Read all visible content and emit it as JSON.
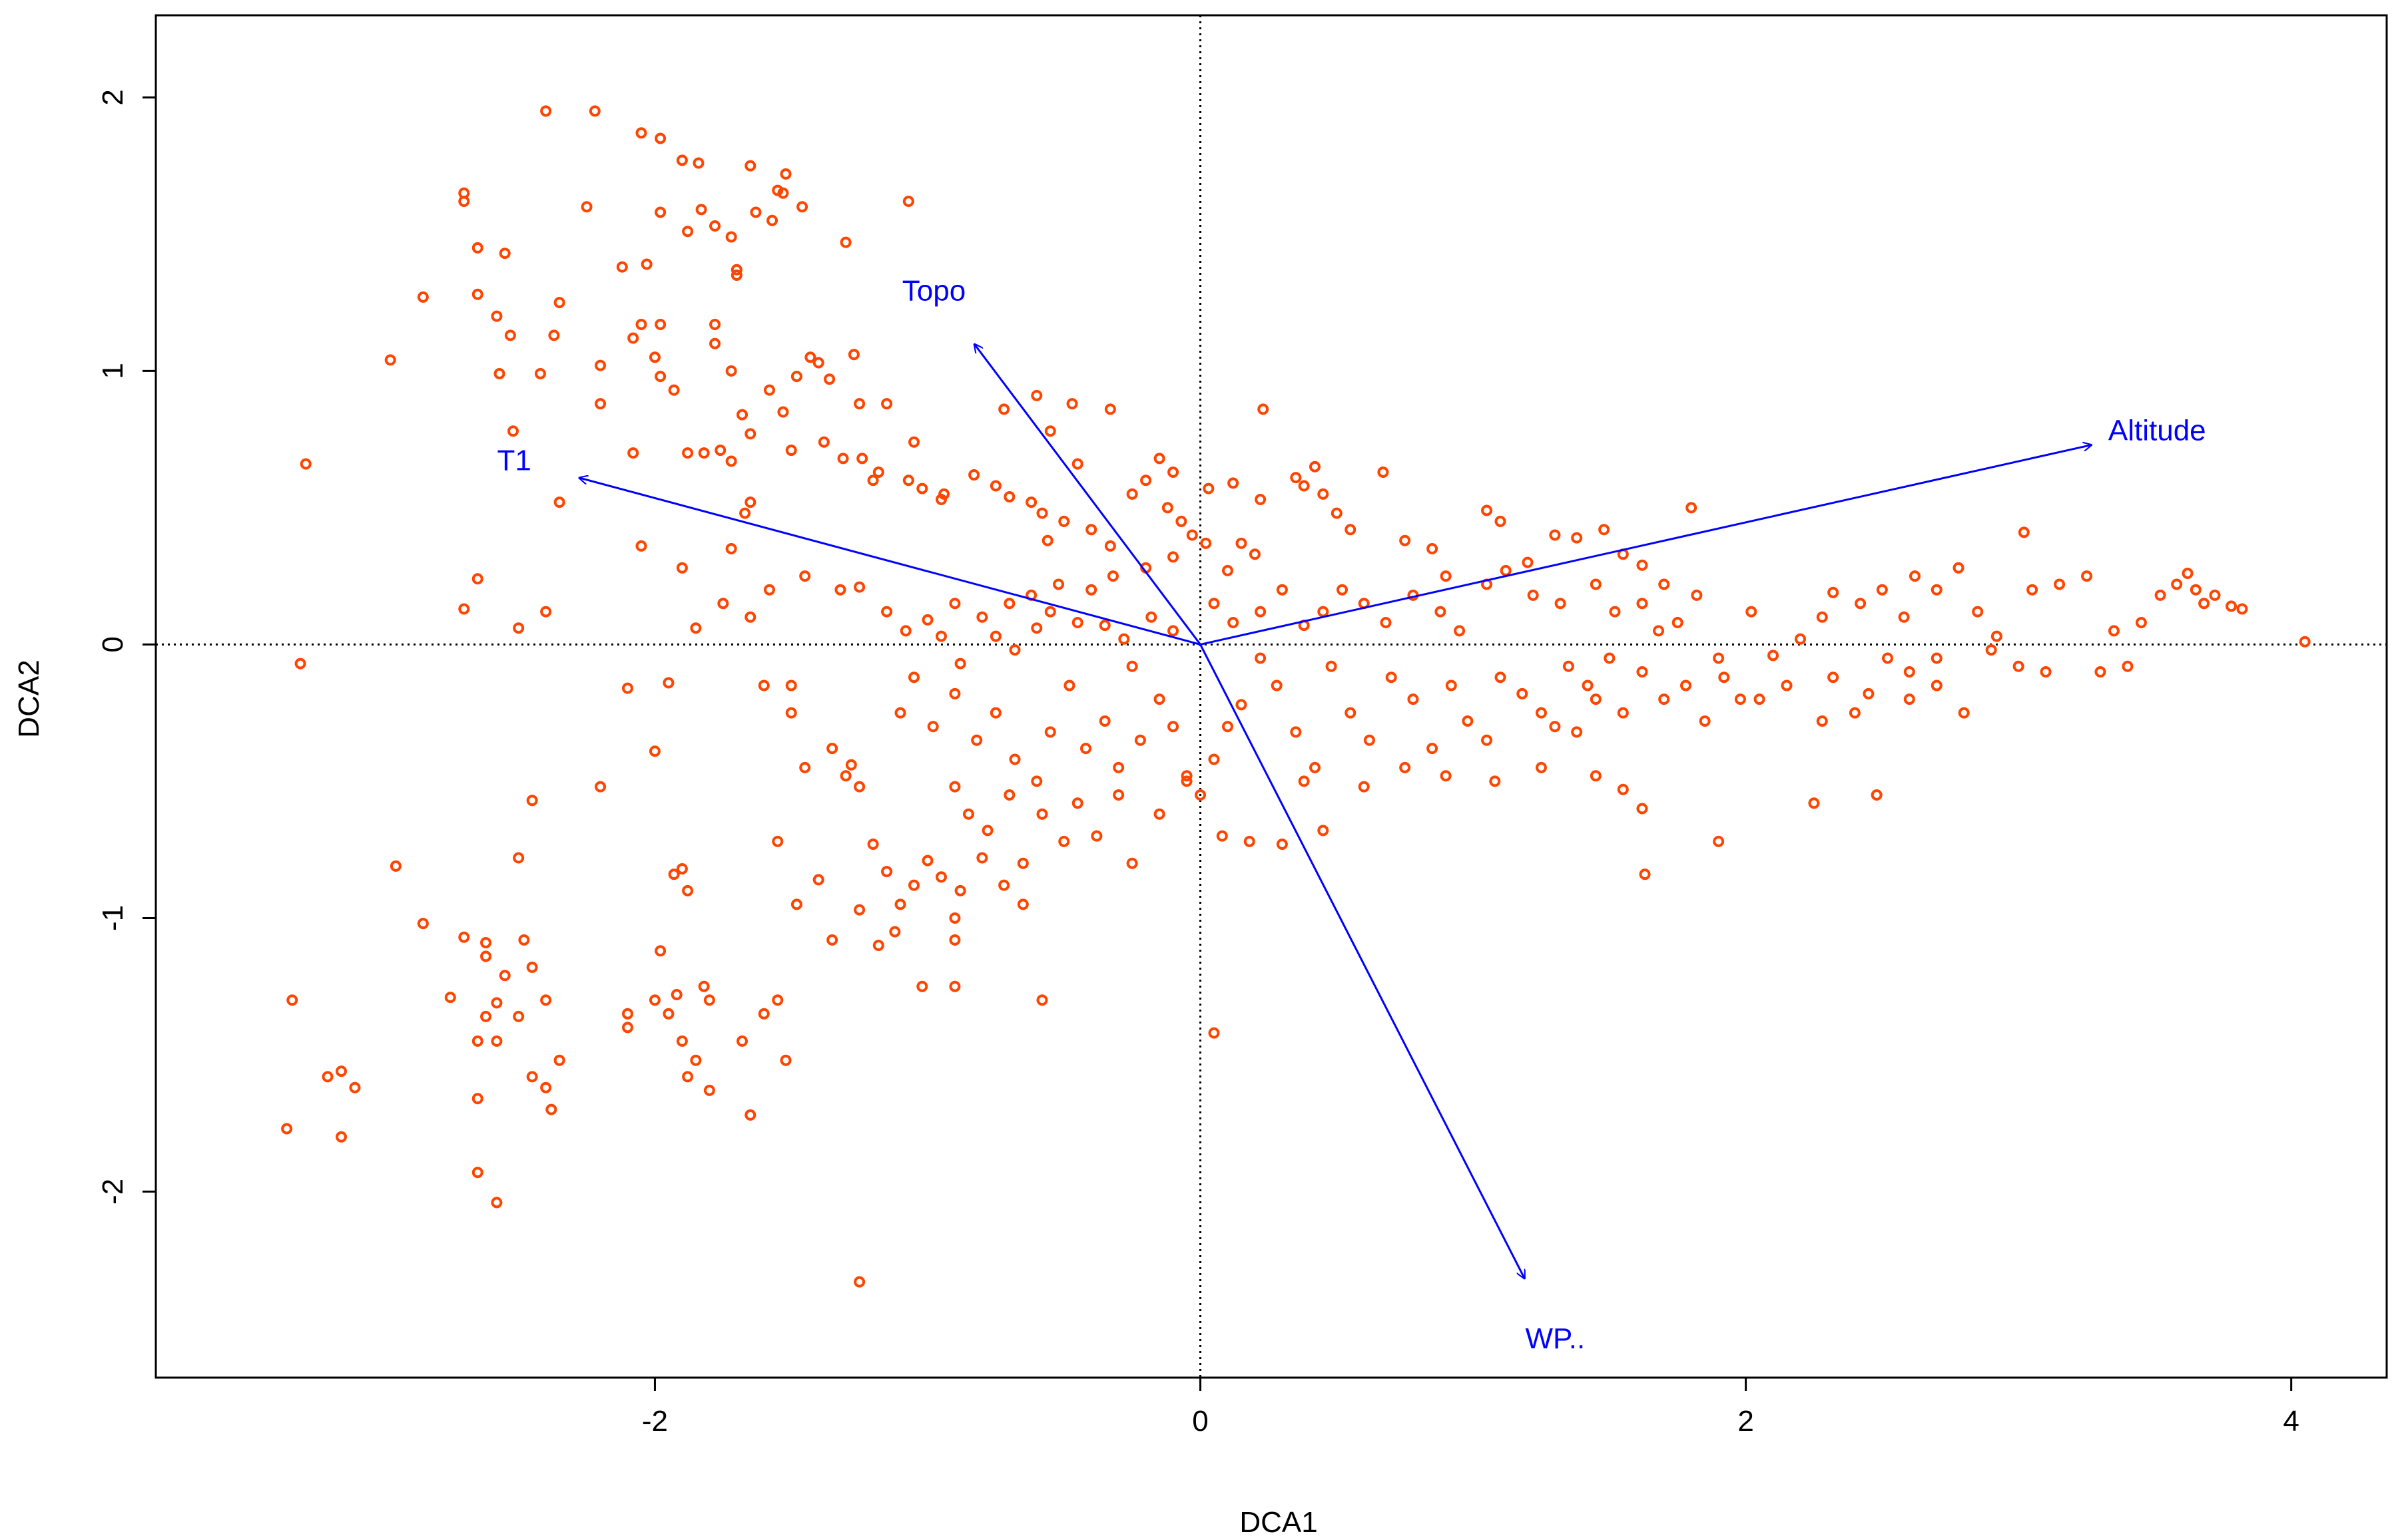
{
  "chart_data": {
    "type": "scatter",
    "title": "",
    "xlabel": "DCA1",
    "ylabel": "DCA2",
    "xlim": [
      -3.83,
      4.35
    ],
    "ylim": [
      -2.68,
      2.3
    ],
    "x_ticks": [
      -2,
      0,
      2,
      4
    ],
    "y_ticks": [
      -2,
      -1,
      0,
      1,
      2
    ],
    "x_tick_labels": [
      "-2",
      "0",
      "2",
      "4"
    ],
    "y_tick_labels": [
      "-2",
      "-1",
      "0",
      "1",
      "2"
    ],
    "grid": false,
    "reference_lines": {
      "x": 0,
      "y": 0,
      "style": "dotted"
    },
    "point_color": "#ff4500",
    "vector_color": "#0000ff",
    "vectors": [
      {
        "name": "Altitude",
        "x": 3.27,
        "y": 0.73
      },
      {
        "name": "Topo",
        "x": -0.83,
        "y": 1.1
      },
      {
        "name": "T1",
        "x": -2.28,
        "y": 0.61
      },
      {
        "name": "WP..",
        "x": 1.19,
        "y": -2.32
      }
    ],
    "points": [
      [
        -2.4,
        1.95
      ],
      [
        -2.22,
        1.95
      ],
      [
        -2.05,
        1.87
      ],
      [
        -1.98,
        1.85
      ],
      [
        -1.9,
        1.77
      ],
      [
        -1.84,
        1.76
      ],
      [
        -1.65,
        1.75
      ],
      [
        -1.52,
        1.72
      ],
      [
        -1.53,
        1.65
      ],
      [
        -1.55,
        1.66
      ],
      [
        -1.83,
        1.59
      ],
      [
        -1.63,
        1.58
      ],
      [
        -1.78,
        1.53
      ],
      [
        -1.72,
        1.49
      ],
      [
        -1.88,
        1.51
      ],
      [
        -1.7,
        1.37
      ],
      [
        -1.7,
        1.35
      ],
      [
        -1.98,
        1.58
      ],
      [
        -2.03,
        1.39
      ],
      [
        -2.12,
        1.38
      ],
      [
        -2.25,
        1.6
      ],
      [
        -2.7,
        1.65
      ],
      [
        -2.7,
        1.62
      ],
      [
        -2.65,
        1.45
      ],
      [
        -2.55,
        1.43
      ],
      [
        -2.05,
        1.17
      ],
      [
        -1.98,
        1.17
      ],
      [
        -1.78,
        1.17
      ],
      [
        -1.57,
        1.55
      ],
      [
        -1.46,
        1.6
      ],
      [
        -1.07,
        1.62
      ],
      [
        -1.3,
        1.47
      ],
      [
        -2.85,
        1.27
      ],
      [
        -2.65,
        1.28
      ],
      [
        -2.58,
        1.2
      ],
      [
        -2.35,
        1.25
      ],
      [
        -2.37,
        1.13
      ],
      [
        -2.53,
        1.13
      ],
      [
        -2.57,
        0.99
      ],
      [
        -2.42,
        0.99
      ],
      [
        -2.2,
        1.02
      ],
      [
        -2.08,
        1.12
      ],
      [
        -2.0,
        1.05
      ],
      [
        -1.98,
        0.98
      ],
      [
        -1.93,
        0.93
      ],
      [
        -1.78,
        1.1
      ],
      [
        -1.72,
        1.0
      ],
      [
        -1.68,
        0.84
      ],
      [
        -1.65,
        0.77
      ],
      [
        -1.58,
        0.93
      ],
      [
        -1.53,
        0.85
      ],
      [
        -1.48,
        0.98
      ],
      [
        -1.43,
        1.05
      ],
      [
        -1.4,
        1.03
      ],
      [
        -1.36,
        0.97
      ],
      [
        -1.27,
        1.06
      ],
      [
        -1.25,
        0.88
      ],
      [
        -1.15,
        0.88
      ],
      [
        -1.05,
        0.74
      ],
      [
        -2.97,
        1.04
      ],
      [
        -3.28,
        0.66
      ],
      [
        -2.52,
        0.78
      ],
      [
        -2.35,
        0.52
      ],
      [
        -2.2,
        0.88
      ],
      [
        -2.08,
        0.7
      ],
      [
        -1.88,
        0.7
      ],
      [
        -1.82,
        0.7
      ],
      [
        -1.76,
        0.71
      ],
      [
        -1.72,
        0.67
      ],
      [
        -1.67,
        0.48
      ],
      [
        -1.65,
        0.52
      ],
      [
        -1.5,
        0.71
      ],
      [
        -1.38,
        0.74
      ],
      [
        -1.31,
        0.68
      ],
      [
        -1.24,
        0.68
      ],
      [
        -1.18,
        0.63
      ],
      [
        -1.07,
        0.6
      ],
      [
        -1.2,
        0.6
      ],
      [
        -1.02,
        0.57
      ],
      [
        -0.95,
        0.53
      ],
      [
        -0.94,
        0.55
      ],
      [
        -0.83,
        0.62
      ],
      [
        -0.75,
        0.58
      ],
      [
        -0.7,
        0.54
      ],
      [
        -0.62,
        0.52
      ],
      [
        -0.58,
        0.48
      ],
      [
        -0.56,
        0.38
      ],
      [
        -0.5,
        0.45
      ],
      [
        -0.4,
        0.42
      ],
      [
        -0.33,
        0.36
      ],
      [
        -0.45,
        0.66
      ],
      [
        -0.55,
        0.78
      ],
      [
        -0.72,
        0.86
      ],
      [
        -0.6,
        0.91
      ],
      [
        -0.47,
        0.88
      ],
      [
        -0.33,
        0.86
      ],
      [
        -0.2,
        0.6
      ],
      [
        -0.25,
        0.55
      ],
      [
        -0.12,
        0.5
      ],
      [
        -0.1,
        0.63
      ],
      [
        -0.15,
        0.68
      ],
      [
        -0.07,
        0.45
      ],
      [
        -0.03,
        0.4
      ],
      [
        0.03,
        0.57
      ],
      [
        0.12,
        0.59
      ],
      [
        0.22,
        0.53
      ],
      [
        0.35,
        0.61
      ],
      [
        0.38,
        0.58
      ],
      [
        0.42,
        0.65
      ],
      [
        0.45,
        0.55
      ],
      [
        0.5,
        0.48
      ],
      [
        0.55,
        0.42
      ],
      [
        0.67,
        0.63
      ],
      [
        0.75,
        0.38
      ],
      [
        0.85,
        0.35
      ],
      [
        0.9,
        0.25
      ],
      [
        1.05,
        0.49
      ],
      [
        1.1,
        0.45
      ],
      [
        1.2,
        0.3
      ],
      [
        1.3,
        0.4
      ],
      [
        1.38,
        0.39
      ],
      [
        1.48,
        0.42
      ],
      [
        1.55,
        0.33
      ],
      [
        1.62,
        0.29
      ],
      [
        1.7,
        0.22
      ],
      [
        1.8,
        0.5
      ],
      [
        0.23,
        0.86
      ],
      [
        0.2,
        0.33
      ],
      [
        0.15,
        0.37
      ],
      [
        0.1,
        0.27
      ],
      [
        0.02,
        0.37
      ],
      [
        -0.1,
        0.32
      ],
      [
        -0.2,
        0.28
      ],
      [
        -0.32,
        0.25
      ],
      [
        -0.4,
        0.2
      ],
      [
        -0.52,
        0.22
      ],
      [
        -0.62,
        0.18
      ],
      [
        -0.7,
        0.15
      ],
      [
        -0.8,
        0.1
      ],
      [
        -0.9,
        0.15
      ],
      [
        -1.0,
        0.09
      ],
      [
        -1.08,
        0.05
      ],
      [
        -1.25,
        0.21
      ],
      [
        -1.15,
        0.12
      ],
      [
        -0.95,
        0.03
      ],
      [
        -0.88,
        -0.07
      ],
      [
        -0.75,
        0.03
      ],
      [
        -0.68,
        -0.02
      ],
      [
        -0.6,
        0.06
      ],
      [
        -0.55,
        0.12
      ],
      [
        -0.45,
        0.08
      ],
      [
        -0.35,
        0.07
      ],
      [
        -0.28,
        0.02
      ],
      [
        -0.25,
        -0.08
      ],
      [
        -0.18,
        0.1
      ],
      [
        -0.1,
        0.05
      ],
      [
        0.05,
        0.15
      ],
      [
        0.12,
        0.08
      ],
      [
        0.22,
        0.12
      ],
      [
        0.3,
        0.2
      ],
      [
        0.38,
        0.07
      ],
      [
        0.45,
        0.12
      ],
      [
        0.52,
        0.2
      ],
      [
        0.6,
        0.15
      ],
      [
        0.68,
        0.08
      ],
      [
        0.78,
        0.18
      ],
      [
        0.88,
        0.12
      ],
      [
        0.95,
        0.05
      ],
      [
        1.05,
        0.22
      ],
      [
        1.12,
        0.27
      ],
      [
        1.22,
        0.18
      ],
      [
        1.32,
        0.15
      ],
      [
        1.45,
        0.22
      ],
      [
        1.52,
        0.12
      ],
      [
        1.62,
        0.15
      ],
      [
        1.68,
        0.05
      ],
      [
        1.75,
        0.08
      ],
      [
        1.82,
        0.18
      ],
      [
        1.9,
        -0.05
      ],
      [
        2.02,
        0.12
      ],
      [
        2.1,
        -0.04
      ],
      [
        2.2,
        0.02
      ],
      [
        2.28,
        0.1
      ],
      [
        2.32,
        0.19
      ],
      [
        2.42,
        0.15
      ],
      [
        2.5,
        0.2
      ],
      [
        2.58,
        0.1
      ],
      [
        2.62,
        0.25
      ],
      [
        2.7,
        0.2
      ],
      [
        2.78,
        0.28
      ],
      [
        2.85,
        0.12
      ],
      [
        2.92,
        0.03
      ],
      [
        3.02,
        0.41
      ],
      [
        3.05,
        0.2
      ],
      [
        3.15,
        0.22
      ],
      [
        3.25,
        0.25
      ],
      [
        3.35,
        0.05
      ],
      [
        3.45,
        0.08
      ],
      [
        3.52,
        0.18
      ],
      [
        3.58,
        0.22
      ],
      [
        3.62,
        0.26
      ],
      [
        3.65,
        0.2
      ],
      [
        3.68,
        0.15
      ],
      [
        3.72,
        0.18
      ],
      [
        3.78,
        0.14
      ],
      [
        3.82,
        0.13
      ],
      [
        4.05,
        0.01
      ],
      [
        3.4,
        -0.08
      ],
      [
        3.3,
        -0.1
      ],
      [
        3.1,
        -0.1
      ],
      [
        3.0,
        -0.08
      ],
      [
        2.9,
        -0.02
      ],
      [
        2.8,
        -0.25
      ],
      [
        2.7,
        -0.15
      ],
      [
        2.6,
        -0.1
      ],
      [
        2.52,
        -0.05
      ],
      [
        2.45,
        -0.18
      ],
      [
        2.4,
        -0.25
      ],
      [
        2.32,
        -0.12
      ],
      [
        2.28,
        -0.28
      ],
      [
        2.25,
        -0.58
      ],
      [
        2.48,
        -0.55
      ],
      [
        2.6,
        -0.2
      ],
      [
        2.7,
        -0.05
      ],
      [
        2.15,
        -0.15
      ],
      [
        2.05,
        -0.2
      ],
      [
        1.98,
        -0.2
      ],
      [
        1.92,
        -0.12
      ],
      [
        1.85,
        -0.28
      ],
      [
        1.78,
        -0.15
      ],
      [
        1.7,
        -0.2
      ],
      [
        1.62,
        -0.1
      ],
      [
        1.55,
        -0.25
      ],
      [
        1.5,
        -0.05
      ],
      [
        1.45,
        -0.2
      ],
      [
        1.42,
        -0.15
      ],
      [
        1.35,
        -0.08
      ],
      [
        1.3,
        -0.3
      ],
      [
        1.25,
        -0.25
      ],
      [
        1.18,
        -0.18
      ],
      [
        1.1,
        -0.12
      ],
      [
        1.05,
        -0.35
      ],
      [
        0.98,
        -0.28
      ],
      [
        0.92,
        -0.15
      ],
      [
        0.85,
        -0.38
      ],
      [
        0.78,
        -0.2
      ],
      [
        0.7,
        -0.12
      ],
      [
        0.62,
        -0.35
      ],
      [
        0.55,
        -0.25
      ],
      [
        0.48,
        -0.08
      ],
      [
        0.42,
        -0.45
      ],
      [
        0.35,
        -0.32
      ],
      [
        0.28,
        -0.15
      ],
      [
        0.22,
        -0.05
      ],
      [
        0.15,
        -0.22
      ],
      [
        0.1,
        -0.3
      ],
      [
        0.05,
        -0.42
      ],
      [
        0.0,
        -0.55
      ],
      [
        -0.05,
        -0.48
      ],
      [
        -0.1,
        -0.3
      ],
      [
        -0.15,
        -0.2
      ],
      [
        -0.22,
        -0.35
      ],
      [
        -0.3,
        -0.45
      ],
      [
        -0.35,
        -0.28
      ],
      [
        -0.42,
        -0.38
      ],
      [
        -0.48,
        -0.15
      ],
      [
        -0.55,
        -0.32
      ],
      [
        -0.6,
        -0.5
      ],
      [
        -0.68,
        -0.42
      ],
      [
        -0.75,
        -0.25
      ],
      [
        -0.82,
        -0.35
      ],
      [
        -0.9,
        -0.18
      ],
      [
        -0.98,
        -0.3
      ],
      [
        -1.05,
        -0.12
      ],
      [
        -1.1,
        -0.25
      ],
      [
        -0.9,
        -0.52
      ],
      [
        -0.85,
        -0.62
      ],
      [
        -0.78,
        -0.68
      ],
      [
        -0.7,
        -0.55
      ],
      [
        -0.65,
        -0.8
      ],
      [
        -0.58,
        -0.62
      ],
      [
        -0.5,
        -0.72
      ],
      [
        -0.45,
        -0.58
      ],
      [
        -0.38,
        -0.7
      ],
      [
        -0.3,
        -0.55
      ],
      [
        -0.25,
        -0.8
      ],
      [
        -0.15,
        -0.62
      ],
      [
        -0.05,
        -0.5
      ],
      [
        0.08,
        -0.7
      ],
      [
        0.18,
        -0.72
      ],
      [
        0.3,
        -0.73
      ],
      [
        0.38,
        -0.5
      ],
      [
        0.45,
        -0.68
      ],
      [
        0.6,
        -0.52
      ],
      [
        0.75,
        -0.45
      ],
      [
        0.9,
        -0.48
      ],
      [
        1.08,
        -0.5
      ],
      [
        1.25,
        -0.45
      ],
      [
        1.38,
        -0.32
      ],
      [
        1.45,
        -0.48
      ],
      [
        1.55,
        -0.53
      ],
      [
        1.62,
        -0.6
      ],
      [
        1.63,
        -0.84
      ],
      [
        1.9,
        -0.72
      ],
      [
        0.05,
        -1.42
      ],
      [
        -1.28,
        -0.44
      ],
      [
        -1.25,
        -0.52
      ],
      [
        -1.2,
        -0.73
      ],
      [
        -1.15,
        -0.83
      ],
      [
        -1.1,
        -0.95
      ],
      [
        -1.05,
        -0.88
      ],
      [
        -1.0,
        -0.79
      ],
      [
        -0.95,
        -0.85
      ],
      [
        -0.88,
        -0.9
      ],
      [
        -0.8,
        -0.78
      ],
      [
        -0.72,
        -0.88
      ],
      [
        -0.65,
        -0.95
      ],
      [
        -0.9,
        -1.0
      ],
      [
        -1.12,
        -1.05
      ],
      [
        -1.18,
        -1.1
      ],
      [
        -1.25,
        -0.97
      ],
      [
        -1.35,
        -1.08
      ],
      [
        -0.9,
        -1.25
      ],
      [
        -1.02,
        -1.25
      ],
      [
        -0.58,
        -1.3
      ],
      [
        -0.9,
        -1.08
      ],
      [
        -1.4,
        -0.86
      ],
      [
        -1.48,
        -0.95
      ],
      [
        -1.55,
        -0.72
      ],
      [
        -1.6,
        -0.15
      ],
      [
        -1.5,
        -0.25
      ],
      [
        -1.45,
        -0.45
      ],
      [
        -1.35,
        -0.38
      ],
      [
        -1.3,
        -0.48
      ],
      [
        -1.9,
        -0.82
      ],
      [
        -1.88,
        -0.9
      ],
      [
        -1.93,
        -0.84
      ],
      [
        -2.0,
        -0.39
      ],
      [
        -2.1,
        -0.16
      ],
      [
        -2.2,
        -0.52
      ],
      [
        -2.45,
        -0.57
      ],
      [
        -2.5,
        -0.78
      ],
      [
        -2.95,
        -0.81
      ],
      [
        -2.85,
        -1.02
      ],
      [
        -2.7,
        -1.07
      ],
      [
        -2.62,
        -1.09
      ],
      [
        -2.62,
        -1.14
      ],
      [
        -2.55,
        -1.21
      ],
      [
        -2.48,
        -1.08
      ],
      [
        -2.45,
        -1.18
      ],
      [
        -2.4,
        -1.3
      ],
      [
        -2.35,
        -1.52
      ],
      [
        -2.45,
        -1.58
      ],
      [
        -2.4,
        -1.62
      ],
      [
        -2.38,
        -1.7
      ],
      [
        -2.5,
        -1.36
      ],
      [
        -2.58,
        -1.31
      ],
      [
        -2.62,
        -1.36
      ],
      [
        -2.58,
        -1.45
      ],
      [
        -2.65,
        -1.45
      ],
      [
        -2.75,
        -1.29
      ],
      [
        -2.65,
        -1.66
      ],
      [
        -2.65,
        -1.93
      ],
      [
        -2.58,
        -2.04
      ],
      [
        -2.1,
        -1.4
      ],
      [
        -2.1,
        -1.35
      ],
      [
        -2.0,
        -1.3
      ],
      [
        -1.95,
        -1.35
      ],
      [
        -1.9,
        -1.45
      ],
      [
        -1.85,
        -1.52
      ],
      [
        -1.88,
        -1.58
      ],
      [
        -1.8,
        -1.3
      ],
      [
        -1.82,
        -1.25
      ],
      [
        -1.68,
        -1.45
      ],
      [
        -1.65,
        -1.72
      ],
      [
        -1.6,
        -1.35
      ],
      [
        -1.55,
        -1.3
      ],
      [
        -1.52,
        -1.52
      ],
      [
        -1.98,
        -1.12
      ],
      [
        -1.92,
        -1.28
      ],
      [
        -1.8,
        -1.63
      ],
      [
        -3.15,
        -1.56
      ],
      [
        -3.1,
        -1.62
      ],
      [
        -3.2,
        -1.58
      ],
      [
        -3.33,
        -1.3
      ],
      [
        -3.35,
        -1.77
      ],
      [
        -3.15,
        -1.8
      ],
      [
        -3.3,
        -0.07
      ],
      [
        -2.4,
        0.12
      ],
      [
        -2.5,
        0.06
      ],
      [
        -2.65,
        0.24
      ],
      [
        -2.7,
        0.13
      ],
      [
        -2.05,
        0.36
      ],
      [
        -1.95,
        -0.14
      ],
      [
        -1.9,
        0.28
      ],
      [
        -1.85,
        0.06
      ],
      [
        -1.75,
        0.15
      ],
      [
        -1.72,
        0.35
      ],
      [
        -1.65,
        0.1
      ],
      [
        -1.58,
        0.2
      ],
      [
        -1.5,
        -0.15
      ],
      [
        -1.45,
        0.25
      ],
      [
        -1.32,
        0.2
      ],
      [
        -1.25,
        -2.33
      ]
    ]
  }
}
